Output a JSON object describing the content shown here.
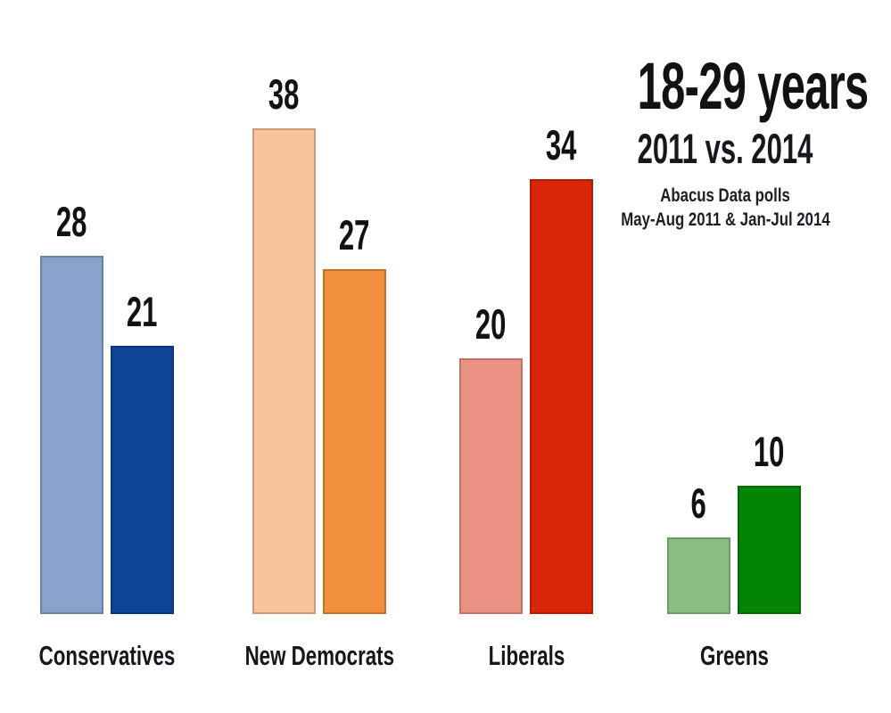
{
  "header": {
    "title": "18-29 years",
    "subtitle": "2011 vs. 2014",
    "caption_line1": "Abacus Data polls",
    "caption_line2": "May-Aug 2011 & Jan-Jul 2014"
  },
  "chart_data": {
    "type": "bar",
    "title": "18-29 years",
    "subtitle": "2011 vs. 2014",
    "caption": [
      "Abacus Data polls",
      "May-Aug 2011 & Jan-Jul 2014"
    ],
    "categories": [
      "Conservatives",
      "New Democrats",
      "Liberals",
      "Greens"
    ],
    "series": [
      {
        "name": "2011",
        "values": [
          28,
          38,
          20,
          6
        ],
        "colors": [
          "#87a3cc",
          "#f7c49b",
          "#ea9181",
          "#89bf84"
        ]
      },
      {
        "name": "2014",
        "values": [
          21,
          27,
          34,
          10
        ],
        "colors": [
          "#0e4495",
          "#f18f3c",
          "#da2508",
          "#048404"
        ]
      }
    ],
    "ylim": [
      0,
      40
    ],
    "grid": false,
    "legend_position": "none",
    "value_labels": true,
    "value_label_color": "#121212",
    "background": "#ffffff"
  }
}
